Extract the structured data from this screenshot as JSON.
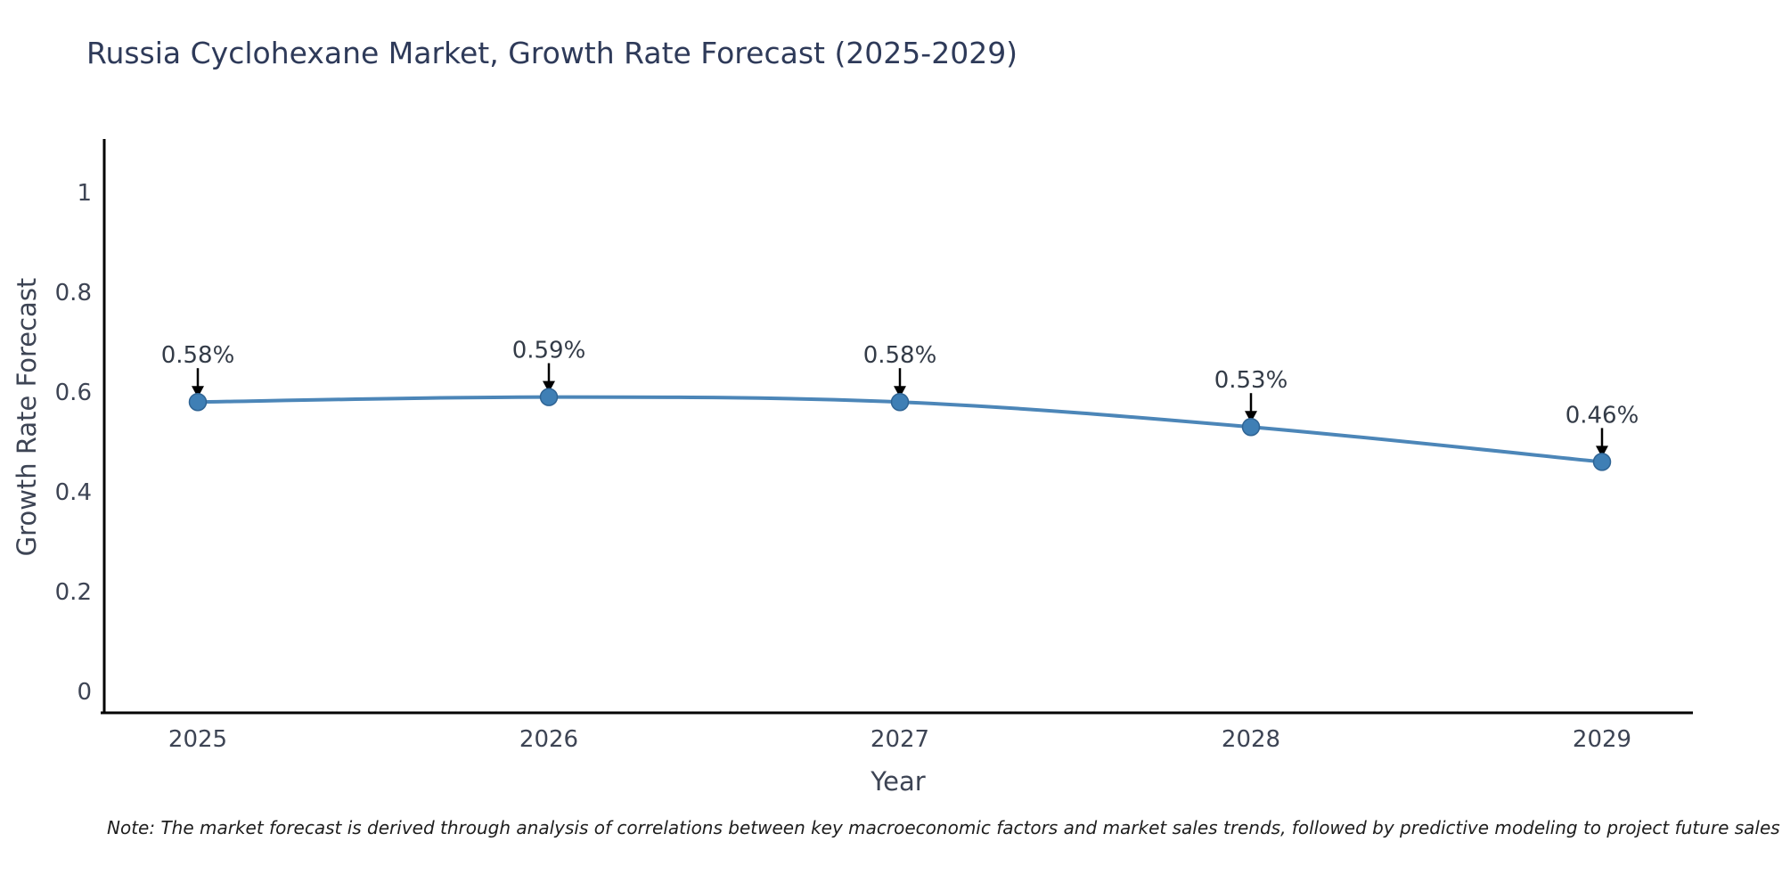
{
  "chart": {
    "title": "Russia Cyclohexane Market, Growth Rate Forecast (2025-2029)",
    "xlabel": "Year",
    "ylabel": "Growth Rate Forecast",
    "note": "Note: The market forecast is derived through analysis of correlations between key macroeconomic factors and market sales trends, followed by predictive modeling to project future sales"
  },
  "chart_data": {
    "type": "line",
    "title": "Russia Cyclohexane Market, Growth Rate Forecast (2025-2029)",
    "x": [
      2025,
      2026,
      2027,
      2028,
      2029
    ],
    "values": [
      0.58,
      0.59,
      0.58,
      0.53,
      0.46
    ],
    "point_labels": [
      "0.58%",
      "0.59%",
      "0.58%",
      "0.53%",
      "0.46%"
    ],
    "xlabel": "Year",
    "ylabel": "Growth Rate Forecast",
    "yticks": [
      0,
      0.2,
      0.4,
      0.6,
      0.8,
      1
    ],
    "ylim": [
      -0.04,
      1.1
    ],
    "grid": false,
    "legend": "none",
    "colors": {
      "line": "#4c86b8",
      "marker_fill": "#3f7fb5",
      "marker_edge": "#2f6494",
      "annotation_text": "#333b47",
      "annotation_arrow": "#000000",
      "tick_text": "#3d4454",
      "spine": "#000000"
    }
  }
}
